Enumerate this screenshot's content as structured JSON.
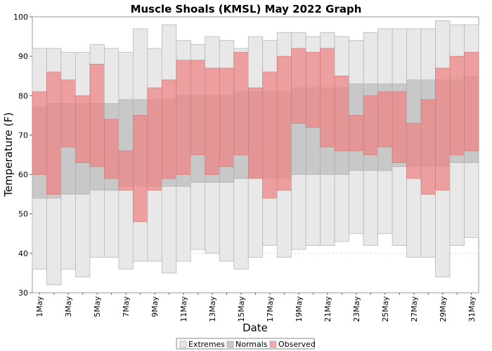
{
  "chart_data": {
    "type": "bar",
    "title": "Muscle Shoals (KMSL) May 2022 Graph",
    "xlabel": "Date",
    "ylabel": "Temperature (F)",
    "ylim": [
      30,
      100
    ],
    "yticks": [
      30,
      40,
      50,
      60,
      70,
      80,
      90,
      100
    ],
    "grid": true,
    "legend_position": "bottom-center",
    "colors": {
      "extremes": "#e8e8e8",
      "normals": "#c8c8c8",
      "observed": "#f08080",
      "plot_border": "#999999"
    },
    "categories": [
      "1May",
      "2May",
      "3May",
      "4May",
      "5May",
      "6May",
      "7May",
      "8May",
      "9May",
      "10May",
      "11May",
      "12May",
      "13May",
      "14May",
      "15May",
      "16May",
      "17May",
      "18May",
      "19May",
      "20May",
      "21May",
      "22May",
      "23May",
      "24May",
      "25May",
      "26May",
      "27May",
      "28May",
      "29May",
      "30May",
      "31May"
    ],
    "tick_labels": [
      "1May",
      "3May",
      "5May",
      "7May",
      "9May",
      "11May",
      "13May",
      "15May",
      "17May",
      "19May",
      "21May",
      "23May",
      "25May",
      "27May",
      "29May",
      "31May"
    ],
    "series": [
      {
        "name": "Extremes",
        "low": [
          36,
          32,
          36,
          34,
          39,
          39,
          36,
          38,
          38,
          35,
          38,
          41,
          40,
          38,
          36,
          39,
          42,
          39,
          41,
          42,
          42,
          43,
          45,
          42,
          45,
          42,
          39,
          39,
          34,
          42,
          44
        ],
        "high": [
          92,
          92,
          91,
          91,
          93,
          92,
          91,
          97,
          92,
          98,
          94,
          93,
          95,
          94,
          92,
          95,
          94,
          96,
          96,
          95,
          96,
          95,
          94,
          96,
          97,
          97,
          97,
          97,
          99,
          98,
          98
        ]
      },
      {
        "name": "Normals",
        "low": [
          54,
          54,
          55,
          55,
          56,
          56,
          57,
          57,
          57,
          57,
          57,
          58,
          58,
          58,
          59,
          59,
          59,
          59,
          60,
          60,
          60,
          60,
          61,
          61,
          61,
          62,
          62,
          62,
          62,
          63,
          63
        ],
        "high": [
          77,
          78,
          78,
          78,
          78,
          78,
          79,
          79,
          79,
          79,
          80,
          80,
          80,
          80,
          81,
          81,
          81,
          81,
          82,
          82,
          82,
          82,
          83,
          83,
          83,
          83,
          84,
          84,
          84,
          84,
          85
        ]
      },
      {
        "name": "Observed",
        "low": [
          60,
          55,
          67,
          63,
          62,
          59,
          56,
          48,
          56,
          59,
          60,
          65,
          60,
          62,
          65,
          59,
          54,
          56,
          73,
          72,
          67,
          66,
          66,
          65,
          67,
          63,
          59,
          55,
          56,
          65,
          66
        ],
        "high": [
          81,
          86,
          84,
          80,
          88,
          74,
          66,
          75,
          82,
          84,
          89,
          89,
          87,
          87,
          91,
          82,
          86,
          90,
          92,
          91,
          92,
          85,
          75,
          80,
          81,
          81,
          73,
          79,
          87,
          90,
          91
        ]
      }
    ]
  }
}
